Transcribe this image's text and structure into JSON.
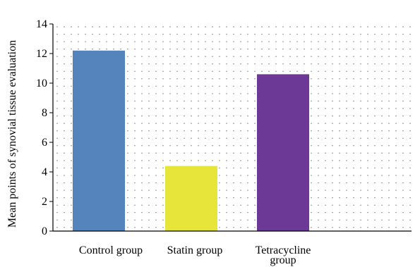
{
  "chart_data": {
    "type": "bar",
    "categories": [
      "Control group",
      "Statin group",
      "Tetracycline group"
    ],
    "category_label_lines": [
      [
        "Control group"
      ],
      [
        "Statin group"
      ],
      [
        "Tetracycline",
        "group"
      ]
    ],
    "values": [
      12.2,
      4.4,
      10.6
    ],
    "colors": [
      "#5583bb",
      "#e8e53a",
      "#6d3996"
    ],
    "ylabel": "Mean points of synovial tissue evaluation",
    "xlabel": "",
    "ylim": [
      0,
      14
    ],
    "yticks": [
      0,
      2,
      4,
      6,
      8,
      10,
      12,
      14
    ],
    "grid": "dotted",
    "legend": "none"
  }
}
